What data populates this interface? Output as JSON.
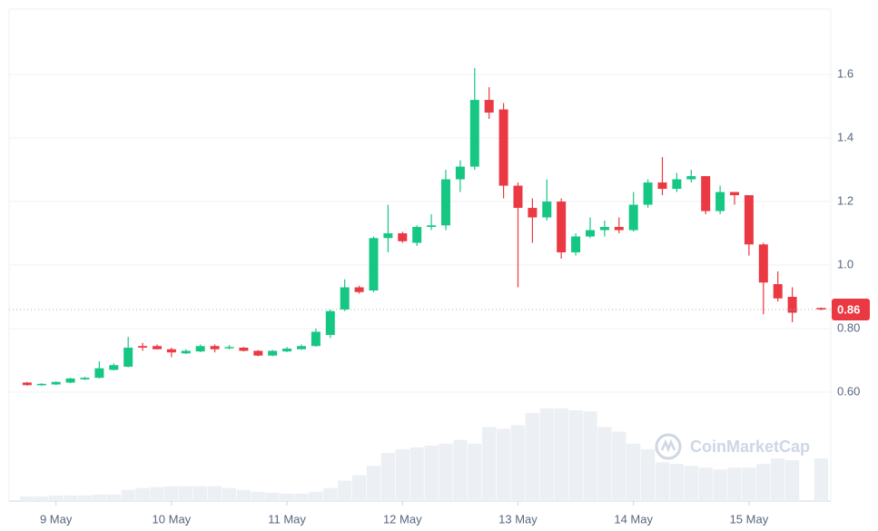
{
  "chart_data": {
    "type": "candlestick",
    "x": [
      -6,
      -3,
      0,
      3,
      6,
      9,
      12,
      15,
      18,
      21,
      24,
      27,
      30,
      33,
      36,
      39,
      42,
      45,
      48,
      51,
      54,
      57,
      60,
      63,
      66,
      69,
      72,
      75,
      78,
      81,
      84,
      87,
      90,
      93,
      96,
      99,
      102,
      105,
      108,
      111,
      114,
      117,
      120,
      123,
      126,
      129,
      132,
      135,
      138,
      141,
      144,
      147,
      150,
      153,
      159
    ],
    "open": [
      0.63,
      0.622,
      0.624,
      0.63,
      0.64,
      0.645,
      0.67,
      0.68,
      0.745,
      0.745,
      0.735,
      0.722,
      0.728,
      0.745,
      0.738,
      0.74,
      0.73,
      0.715,
      0.728,
      0.735,
      0.745,
      0.78,
      0.86,
      0.93,
      0.92,
      1.085,
      1.1,
      1.07,
      1.12,
      1.125,
      1.27,
      1.31,
      1.52,
      1.49,
      1.25,
      1.18,
      1.15,
      1.2,
      1.04,
      1.09,
      1.11,
      1.12,
      1.11,
      1.19,
      1.26,
      1.24,
      1.27,
      1.28,
      1.17,
      1.23,
      1.22,
      1.065,
      0.94,
      0.9,
      0.865
    ],
    "high": [
      0.632,
      0.628,
      0.634,
      0.645,
      0.648,
      0.697,
      0.69,
      0.774,
      0.755,
      0.75,
      0.74,
      0.735,
      0.75,
      0.75,
      0.748,
      0.742,
      0.732,
      0.733,
      0.742,
      0.75,
      0.8,
      0.86,
      0.955,
      0.935,
      1.09,
      1.19,
      1.105,
      1.125,
      1.16,
      1.3,
      1.33,
      1.62,
      1.56,
      1.51,
      1.26,
      1.21,
      1.27,
      1.21,
      1.1,
      1.15,
      1.14,
      1.15,
      1.23,
      1.27,
      1.34,
      1.29,
      1.3,
      1.28,
      1.25,
      1.23,
      1.22,
      1.07,
      0.98,
      0.93,
      0.866
    ],
    "low": [
      0.62,
      0.62,
      0.622,
      0.628,
      0.638,
      0.643,
      0.668,
      0.678,
      0.73,
      0.735,
      0.71,
      0.72,
      0.726,
      0.725,
      0.735,
      0.728,
      0.713,
      0.713,
      0.726,
      0.733,
      0.743,
      0.77,
      0.855,
      0.91,
      0.915,
      1.04,
      1.07,
      1.06,
      1.11,
      1.11,
      1.23,
      1.3,
      1.46,
      1.21,
      0.93,
      1.07,
      1.14,
      1.02,
      1.03,
      1.085,
      1.09,
      1.1,
      1.105,
      1.18,
      1.22,
      1.23,
      1.26,
      1.16,
      1.16,
      1.19,
      1.03,
      0.845,
      0.885,
      0.82,
      0.858
    ],
    "close": [
      0.622,
      0.626,
      0.632,
      0.643,
      0.645,
      0.675,
      0.685,
      0.74,
      0.74,
      0.735,
      0.725,
      0.73,
      0.745,
      0.735,
      0.742,
      0.73,
      0.715,
      0.73,
      0.737,
      0.745,
      0.79,
      0.855,
      0.93,
      0.915,
      1.085,
      1.1,
      1.075,
      1.12,
      1.125,
      1.27,
      1.31,
      1.52,
      1.48,
      1.25,
      1.18,
      1.15,
      1.2,
      1.04,
      1.09,
      1.11,
      1.12,
      1.11,
      1.19,
      1.26,
      1.24,
      1.27,
      1.28,
      1.17,
      1.23,
      1.22,
      1.065,
      0.945,
      0.895,
      0.85,
      0.86
    ],
    "volume": [
      5,
      5,
      6,
      6,
      6,
      7,
      7,
      12,
      14,
      15,
      16,
      16,
      16,
      16,
      14,
      12,
      10,
      9,
      8,
      8,
      10,
      14,
      22,
      28,
      38,
      52,
      56,
      58,
      60,
      62,
      66,
      62,
      80,
      78,
      82,
      95,
      100,
      100,
      98,
      97,
      80,
      75,
      62,
      56,
      42,
      40,
      38,
      36,
      34,
      36,
      36,
      40,
      46,
      44,
      46
    ],
    "volume_lim": [
      0,
      100
    ],
    "up_color": "#16c784",
    "down_color": "#ea3943",
    "volume_color": "#eceff3",
    "xlim": [
      -9.75,
      161
    ],
    "xticks": [
      {
        "value": 0,
        "label": "9 May"
      },
      {
        "value": 24,
        "label": "10 May"
      },
      {
        "value": 48,
        "label": "11 May"
      },
      {
        "value": 72,
        "label": "12 May"
      },
      {
        "value": 96,
        "label": "13 May"
      },
      {
        "value": 120,
        "label": "14 May"
      },
      {
        "value": 144,
        "label": "15 May"
      }
    ],
    "ylim": [
      0.257,
      1.806
    ],
    "yticks": [
      {
        "value": 0.6,
        "label": "0.60"
      },
      {
        "value": 0.8,
        "label": "0.80"
      },
      {
        "value": 1,
        "label": "1.0"
      },
      1.2,
      1.4,
      1.6
    ],
    "last_price": 0.86,
    "grid": true,
    "watermark": "CoinMarketCap"
  }
}
